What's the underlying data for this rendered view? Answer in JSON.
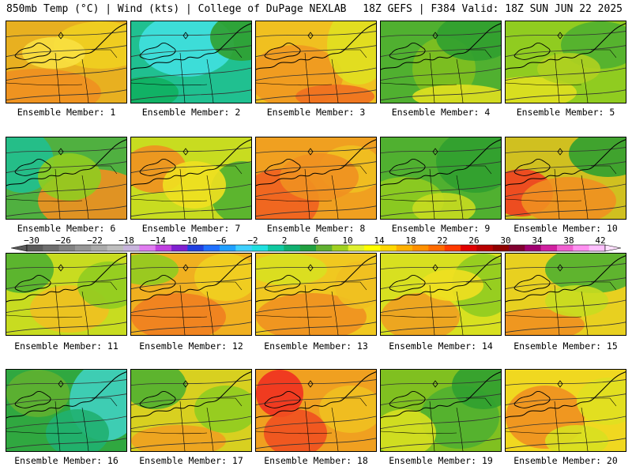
{
  "header": {
    "left": "850mb Temp (°C) | Wind (kts) | College of DuPage NEXLAB",
    "right": "18Z GEFS | F384 Valid: 18Z SUN JUN 22 2025"
  },
  "panels": [
    {
      "label": "Ensemble Member: 1"
    },
    {
      "label": "Ensemble Member: 2"
    },
    {
      "label": "Ensemble Member: 3"
    },
    {
      "label": "Ensemble Member: 4"
    },
    {
      "label": "Ensemble Member: 5"
    },
    {
      "label": "Ensemble Member: 6"
    },
    {
      "label": "Ensemble Member: 7"
    },
    {
      "label": "Ensemble Member: 8"
    },
    {
      "label": "Ensemble Member: 9"
    },
    {
      "label": "Ensemble Member: 10"
    },
    {
      "label": "Ensemble Member: 11"
    },
    {
      "label": "Ensemble Member: 12"
    },
    {
      "label": "Ensemble Member: 13"
    },
    {
      "label": "Ensemble Member: 14"
    },
    {
      "label": "Ensemble Member: 15"
    },
    {
      "label": "Ensemble Member: 16"
    },
    {
      "label": "Ensemble Member: 17"
    },
    {
      "label": "Ensemble Member: 18"
    },
    {
      "label": "Ensemble Member: 19"
    },
    {
      "label": "Ensemble Member: 20"
    }
  ],
  "colorbar": {
    "tick_labels": [
      "−30",
      "−26",
      "−22",
      "−18",
      "−14",
      "−10",
      "−6",
      "−2",
      "2",
      "6",
      "10",
      "14",
      "18",
      "22",
      "26",
      "30",
      "34",
      "38",
      "42"
    ],
    "colors": [
      "#5a5a5a",
      "#6e6e6e",
      "#828282",
      "#969696",
      "#aaaaaa",
      "#bebebe",
      "#c8b4dc",
      "#e07cf0",
      "#c040e0",
      "#8020d0",
      "#2040e0",
      "#2070ff",
      "#20a0ff",
      "#40d0ff",
      "#20e0e0",
      "#10c8a0",
      "#10b070",
      "#20a040",
      "#60b030",
      "#a0d020",
      "#e0f030",
      "#ffff00",
      "#ffd700",
      "#ffb000",
      "#ff9000",
      "#ff6a00",
      "#ff3a00",
      "#e00000",
      "#b80000",
      "#900000",
      "#800030",
      "#a00070",
      "#d020a0",
      "#f060d0",
      "#ff90f0",
      "#ffc0ff"
    ]
  }
}
